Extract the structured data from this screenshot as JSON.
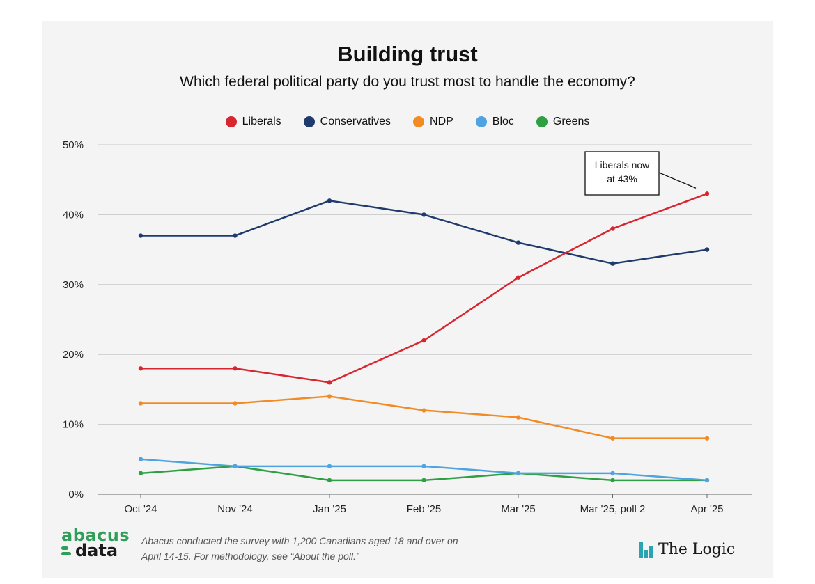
{
  "chart_data": {
    "type": "line",
    "title": "Building trust",
    "subtitle": "Which federal political party do you trust most to handle the economy?",
    "categories": [
      "Oct '24",
      "Nov '24",
      "Jan '25",
      "Feb '25",
      "Mar '25",
      "Mar '25, poll 2",
      "Apr '25"
    ],
    "ylim": [
      0,
      50
    ],
    "yticks": [
      0,
      10,
      20,
      30,
      40,
      50
    ],
    "ytick_labels": [
      "0%",
      "10%",
      "20%",
      "30%",
      "40%",
      "50%"
    ],
    "xlabel": "",
    "ylabel": "",
    "grid": true,
    "legend_position": "top",
    "series": [
      {
        "name": "Liberals",
        "color": "#d7262f",
        "values": [
          18,
          18,
          16,
          22,
          31,
          38,
          43
        ]
      },
      {
        "name": "Conservatives",
        "color": "#1f3b6e",
        "values": [
          37,
          37,
          42,
          40,
          36,
          33,
          35
        ]
      },
      {
        "name": "NDP",
        "color": "#f28a26",
        "values": [
          13,
          13,
          14,
          12,
          11,
          8,
          8
        ]
      },
      {
        "name": "Bloc",
        "color": "#4ea3e0",
        "values": [
          5,
          4,
          4,
          4,
          3,
          3,
          2
        ]
      },
      {
        "name": "Greens",
        "color": "#2ea043",
        "values": [
          3,
          4,
          2,
          2,
          3,
          2,
          2
        ]
      }
    ],
    "annotation": {
      "text_line1": "Liberals now",
      "text_line2": "at 43%",
      "series": "Liberals",
      "category_index": 6,
      "value": 43
    }
  },
  "footer": {
    "note_line1": "Abacus conducted the survey with 1,200 Canadians aged 18 and over on",
    "note_line2": "April 14-15. For methodology, see “About the poll.”"
  },
  "logos": {
    "abacus_line1": "abacus",
    "abacus_line2": "data",
    "abacus_color": "#2f9e58",
    "logic_name": "The Logic",
    "logic_color": "#2aa4b0"
  }
}
